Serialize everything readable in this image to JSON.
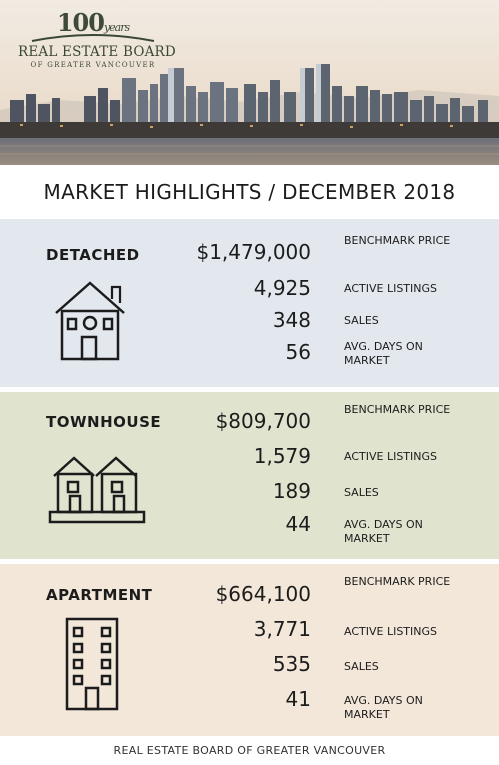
{
  "logo": {
    "hundred": "100",
    "years": "years",
    "main": "REAL ESTATE BOARD",
    "sub": "OF GREATER VANCOUVER"
  },
  "title": "MARKET HIGHLIGHTS / DECEMBER 2018",
  "sections": [
    {
      "type": "DETACHED",
      "icon": "house-icon",
      "benchmark_price": "$1,479,000",
      "benchmark_label": "BENCHMARK PRICE",
      "active_listings": "4,925",
      "active_listings_label": "ACTIVE LISTINGS",
      "sales": "348",
      "sales_label": "SALES",
      "avg_days": "56",
      "avg_days_label": "AVG. DAYS ON MARKET",
      "bg_color": "#e3e8ee"
    },
    {
      "type": "TOWNHOUSE",
      "icon": "townhouse-icon",
      "benchmark_price": "$809,700",
      "benchmark_label": "BENCHMARK PRICE",
      "active_listings": "1,579",
      "active_listings_label": "ACTIVE LISTINGS",
      "sales": "189",
      "sales_label": "SALES",
      "avg_days": "44",
      "avg_days_label": "AVG. DAYS ON MARKET",
      "bg_color": "#e0e4cf"
    },
    {
      "type": "APARTMENT",
      "icon": "apartment-building-icon",
      "benchmark_price": "$664,100",
      "benchmark_label": "BENCHMARK PRICE",
      "active_listings": "3,771",
      "active_listings_label": "ACTIVE LISTINGS",
      "sales": "535",
      "sales_label": "SALES",
      "avg_days": "41",
      "avg_days_label": "AVG. DAYS ON MARKET",
      "bg_color": "#f2e7d9"
    }
  ],
  "footer": "REAL ESTATE BOARD OF GREATER VANCOUVER"
}
